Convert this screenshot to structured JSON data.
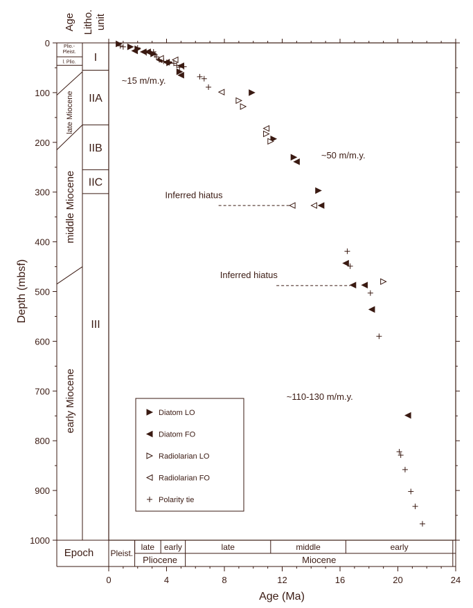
{
  "chart_data": {
    "type": "scatter",
    "xlabel": "Age (Ma)",
    "ylabel": "Depth (mbsf)",
    "xlim": [
      0,
      24
    ],
    "ylim": [
      1000,
      0
    ],
    "x_ticks": [
      "0",
      "4",
      "8",
      "12",
      "16",
      "20",
      "24"
    ],
    "y_ticks": [
      "0",
      "100",
      "200",
      "300",
      "400",
      "500",
      "600",
      "700",
      "800",
      "900",
      "1000"
    ],
    "grid": false,
    "legend_position": "bottom-left",
    "colors": {
      "ink": "#3a1a12",
      "background": "#ffffff"
    },
    "column_headers": {
      "age": "Age",
      "litho_line1": "Litho.",
      "litho_line2": "unit",
      "epoch": "Epoch"
    },
    "age_units": [
      {
        "label": "Plio.-",
        "label2": "Pleist.",
        "top": 0,
        "bottom": 28
      },
      {
        "label": "l. Plio.",
        "top": 28,
        "bottom": 48
      },
      {
        "label": "late Miocene",
        "top": 48,
        "bottom": 215
      },
      {
        "label": "middle Miocene",
        "top": 215,
        "bottom": 485
      },
      {
        "label": "early Miocene",
        "top": 485,
        "bottom": 1000
      }
    ],
    "litho_units": [
      {
        "label": "I",
        "top": 0,
        "bottom": 55
      },
      {
        "label": "IIA",
        "top": 55,
        "bottom": 165
      },
      {
        "label": "IIB",
        "top": 165,
        "bottom": 255
      },
      {
        "label": "IIC",
        "top": 255,
        "bottom": 303
      },
      {
        "label": "III",
        "top": 303,
        "bottom": 1000
      }
    ],
    "subepochs": [
      {
        "label": "Pleist.",
        "from": 0,
        "to": 1.8
      },
      {
        "label": "late",
        "from": 1.8,
        "to": 3.6
      },
      {
        "label": "early",
        "from": 3.6,
        "to": 5.3
      },
      {
        "label": "late",
        "from": 5.3,
        "to": 11.2
      },
      {
        "label": "middle",
        "from": 11.2,
        "to": 16.4
      },
      {
        "label": "early",
        "from": 16.4,
        "to": 23.8
      }
    ],
    "epochs": [
      {
        "label": "Pliocene",
        "from": 1.8,
        "to": 5.3
      },
      {
        "label": "Miocene",
        "from": 5.3,
        "to": 23.8
      }
    ],
    "series": [
      {
        "name": "Diatom LO",
        "marker": "tri-right-filled",
        "points": [
          [
            0.7,
            2
          ],
          [
            1.5,
            8
          ],
          [
            2.0,
            12
          ],
          [
            3.1,
            22
          ],
          [
            4.2,
            40
          ],
          [
            4.9,
            58
          ],
          [
            9.9,
            100
          ],
          [
            11.4,
            193
          ],
          [
            12.8,
            230
          ],
          [
            14.5,
            297
          ]
        ]
      },
      {
        "name": "Diatom FO",
        "marker": "tri-left-filled",
        "points": [
          [
            1.8,
            16
          ],
          [
            2.4,
            18
          ],
          [
            2.7,
            18
          ],
          [
            3.5,
            34
          ],
          [
            4.0,
            39
          ],
          [
            5.0,
            46
          ],
          [
            5.0,
            65
          ],
          [
            13.0,
            239
          ],
          [
            14.7,
            327
          ],
          [
            16.4,
            443
          ],
          [
            16.9,
            487
          ],
          [
            17.7,
            487
          ],
          [
            18.2,
            536
          ],
          [
            20.7,
            749
          ]
        ]
      },
      {
        "name": "Radiolarian LO",
        "marker": "tri-right-open",
        "points": [
          [
            9.0,
            116
          ],
          [
            9.3,
            128
          ],
          [
            10.9,
            183
          ],
          [
            11.2,
            198
          ],
          [
            19.0,
            480
          ]
        ]
      },
      {
        "name": "Radiolarian FO",
        "marker": "tri-left-open",
        "points": [
          [
            3.6,
            31
          ],
          [
            4.6,
            34
          ],
          [
            7.8,
            99
          ],
          [
            10.9,
            172
          ],
          [
            12.7,
            327
          ],
          [
            14.2,
            327
          ]
        ]
      },
      {
        "name": "Polarity tie",
        "marker": "plus",
        "points": [
          [
            0.8,
            6
          ],
          [
            1.0,
            8
          ],
          [
            2.0,
            10
          ],
          [
            2.6,
            20
          ],
          [
            3.1,
            18
          ],
          [
            3.2,
            24
          ],
          [
            3.3,
            28
          ],
          [
            3.5,
            34
          ],
          [
            3.8,
            37
          ],
          [
            4.2,
            38
          ],
          [
            4.5,
            41
          ],
          [
            4.7,
            45
          ],
          [
            4.9,
            49
          ],
          [
            5.2,
            48
          ],
          [
            6.3,
            68
          ],
          [
            6.6,
            72
          ],
          [
            6.9,
            89
          ],
          [
            16.5,
            419
          ],
          [
            16.7,
            449
          ],
          [
            18.1,
            503
          ],
          [
            18.7,
            590
          ],
          [
            20.1,
            822
          ],
          [
            20.2,
            829
          ],
          [
            20.5,
            858
          ],
          [
            20.9,
            902
          ],
          [
            21.2,
            932
          ],
          [
            21.7,
            967
          ]
        ]
      }
    ],
    "annotations": [
      {
        "text": "~15 m/m.y.",
        "x": 0.9,
        "y": 82
      },
      {
        "text": "~50 m/m.y.",
        "x": 14.7,
        "y": 232
      },
      {
        "text": "~110-130 m/m.y.",
        "x": 12.3,
        "y": 718
      },
      {
        "text": "Inferred hiatus",
        "x": 3.9,
        "y": 312
      },
      {
        "text": "Inferred hiatus",
        "x": 7.7,
        "y": 473
      }
    ],
    "hiatus_lines": [
      {
        "y": 327,
        "x_from": 7.6,
        "x_to": 12.5
      },
      {
        "y": 488,
        "x_from": 11.6,
        "x_to": 16.7
      }
    ]
  }
}
